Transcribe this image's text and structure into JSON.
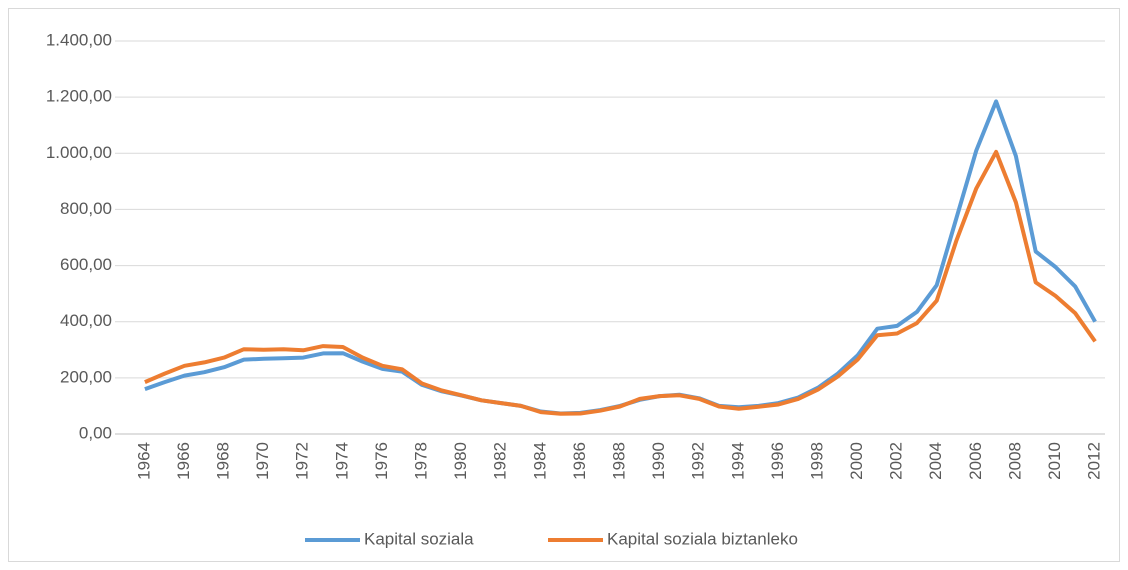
{
  "chart_data": {
    "type": "line",
    "categories": [
      "1964",
      null,
      "1966",
      null,
      "1968",
      null,
      "1970",
      null,
      "1972",
      null,
      "1974",
      null,
      "1976",
      null,
      "1978",
      null,
      "1980",
      null,
      "1982",
      null,
      "1984",
      null,
      "1986",
      null,
      "1988",
      null,
      "1990",
      null,
      "1992",
      null,
      "1994",
      null,
      "1996",
      null,
      "1998",
      null,
      "2000",
      null,
      "2002",
      null,
      "2004",
      null,
      "2006",
      null,
      "2008",
      null,
      "2010",
      null,
      "2012"
    ],
    "series": [
      {
        "name": "Kapital soziala",
        "color": "#5b9bd5",
        "values": [
          160,
          185,
          208,
          220,
          238,
          265,
          268,
          270,
          272,
          287,
          288,
          258,
          232,
          222,
          175,
          152,
          137,
          120,
          110,
          100,
          80,
          73,
          75,
          85,
          100,
          122,
          135,
          140,
          127,
          100,
          95,
          100,
          110,
          130,
          165,
          215,
          280,
          375,
          385,
          435,
          530,
          770,
          1010,
          1185,
          990,
          650,
          595,
          525,
          400
        ]
      },
      {
        "name": "Kapital soziala biztanleko",
        "color": "#ed7d31",
        "values": [
          185,
          215,
          243,
          255,
          272,
          302,
          300,
          302,
          298,
          313,
          310,
          272,
          243,
          230,
          180,
          155,
          138,
          120,
          110,
          100,
          78,
          72,
          73,
          83,
          98,
          125,
          135,
          138,
          125,
          98,
          90,
          97,
          105,
          125,
          158,
          205,
          265,
          352,
          358,
          395,
          475,
          690,
          875,
          1005,
          825,
          540,
          492,
          430,
          330
        ]
      }
    ],
    "ylim": [
      0,
      1400
    ],
    "yticks": [
      {
        "value": 0,
        "label": "0,00"
      },
      {
        "value": 200,
        "label": "200,00"
      },
      {
        "value": 400,
        "label": "400,00"
      },
      {
        "value": 600,
        "label": "600,00"
      },
      {
        "value": 800,
        "label": "800,00"
      },
      {
        "value": 1000,
        "label": "1.000,00"
      },
      {
        "value": 1200,
        "label": "1.200,00"
      },
      {
        "value": 1400,
        "label": "1.400,00"
      }
    ],
    "grid": true,
    "legend": "bottom"
  }
}
